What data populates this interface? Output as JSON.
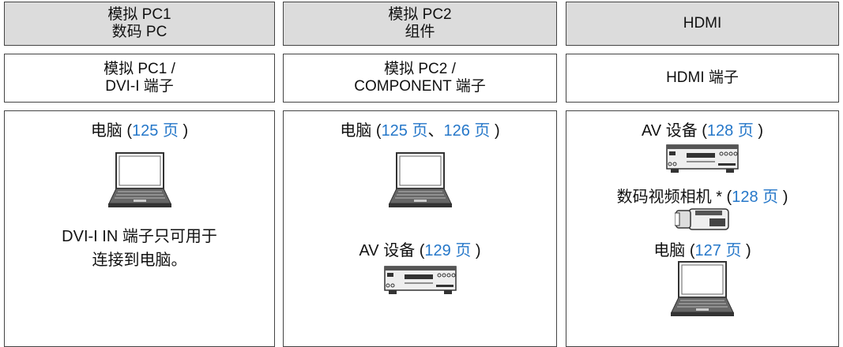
{
  "columns": [
    {
      "header": [
        "模拟 PC1",
        "数码 PC"
      ],
      "terminal": [
        "模拟 PC1 /",
        "DVI-I 端子"
      ],
      "items": [
        {
          "segments": [
            {
              "text": "电脑 ("
            },
            {
              "text": "125 页",
              "link": true
            },
            {
              "text": " )"
            }
          ]
        }
      ],
      "note": [
        "DVI-I IN 端子只可用于",
        "连接到电脑。"
      ]
    },
    {
      "header": [
        "模拟 PC2",
        "组件"
      ],
      "terminal": [
        "模拟 PC2 /",
        "COMPONENT 端子"
      ],
      "items": [
        {
          "segments": [
            {
              "text": "电脑 ("
            },
            {
              "text": "125 页",
              "link": true
            },
            {
              "text": "、"
            },
            {
              "text": "126 页",
              "link": true
            },
            {
              "text": " )"
            }
          ]
        },
        {
          "segments": [
            {
              "text": "AV 设备 ("
            },
            {
              "text": "129 页",
              "link": true
            },
            {
              "text": " )"
            }
          ]
        }
      ]
    },
    {
      "header": [
        "HDMI"
      ],
      "terminal": [
        "HDMI 端子"
      ],
      "items": [
        {
          "segments": [
            {
              "text": "AV 设备 ("
            },
            {
              "text": "128 页",
              "link": true
            },
            {
              "text": " )"
            }
          ]
        },
        {
          "segments": [
            {
              "text": "数码视频相机 * ("
            },
            {
              "text": "128 页",
              "link": true
            },
            {
              "text": " )"
            }
          ]
        },
        {
          "segments": [
            {
              "text": "电脑 ("
            },
            {
              "text": "127 页",
              "link": true
            },
            {
              "text": " )"
            }
          ]
        }
      ]
    }
  ]
}
